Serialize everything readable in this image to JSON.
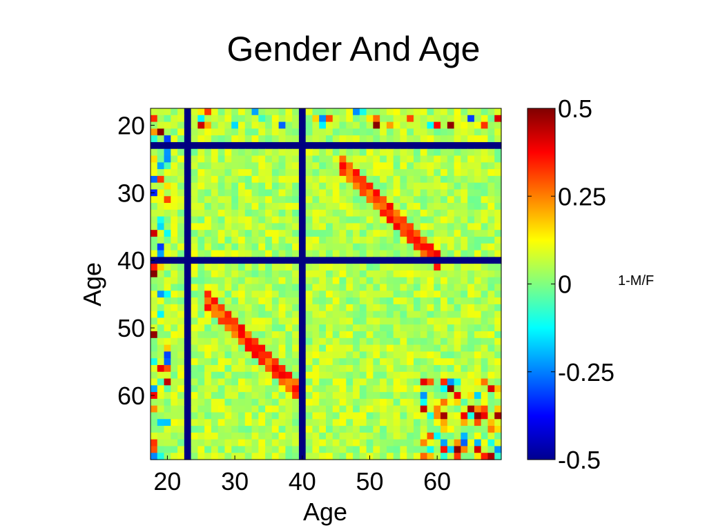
{
  "chart_data": {
    "type": "heatmap",
    "title": "Gender And Age",
    "xlabel": "Age",
    "ylabel": "Age",
    "x_range": [
      18,
      69
    ],
    "y_range": [
      18,
      69
    ],
    "x_ticks": [
      20,
      30,
      40,
      50,
      60
    ],
    "y_ticks": [
      20,
      30,
      40,
      50,
      60
    ],
    "colorbar": {
      "label": "1-M/F",
      "range": [
        -0.5,
        0.5
      ],
      "ticks": [
        0.5,
        0.25,
        0,
        -0.25,
        -0.5
      ],
      "tick_labels": [
        "0.5",
        "0.25",
        "0",
        "-0.25",
        "-0.5"
      ],
      "colormap": "jet"
    },
    "missing_ages": [
      23,
      40
    ],
    "missing_value": -0.5,
    "background_value": 0.05,
    "noise_amplitude": 0.07,
    "diagonal_bands": [
      {
        "age_a_start": 26,
        "age_a_end": 40,
        "age_b_start": 46,
        "age_b_end": 60,
        "value": 0.3
      },
      {
        "age_a_start": 46,
        "age_a_end": 60,
        "age_b_start": 26,
        "age_b_end": 40,
        "value": 0.3
      }
    ],
    "corner_region": {
      "age_min": 58,
      "age_max": 69,
      "value_range": [
        -0.3,
        0.5
      ]
    },
    "edge_region": {
      "age_max": 20,
      "value_range": [
        -0.35,
        0.5
      ]
    }
  }
}
